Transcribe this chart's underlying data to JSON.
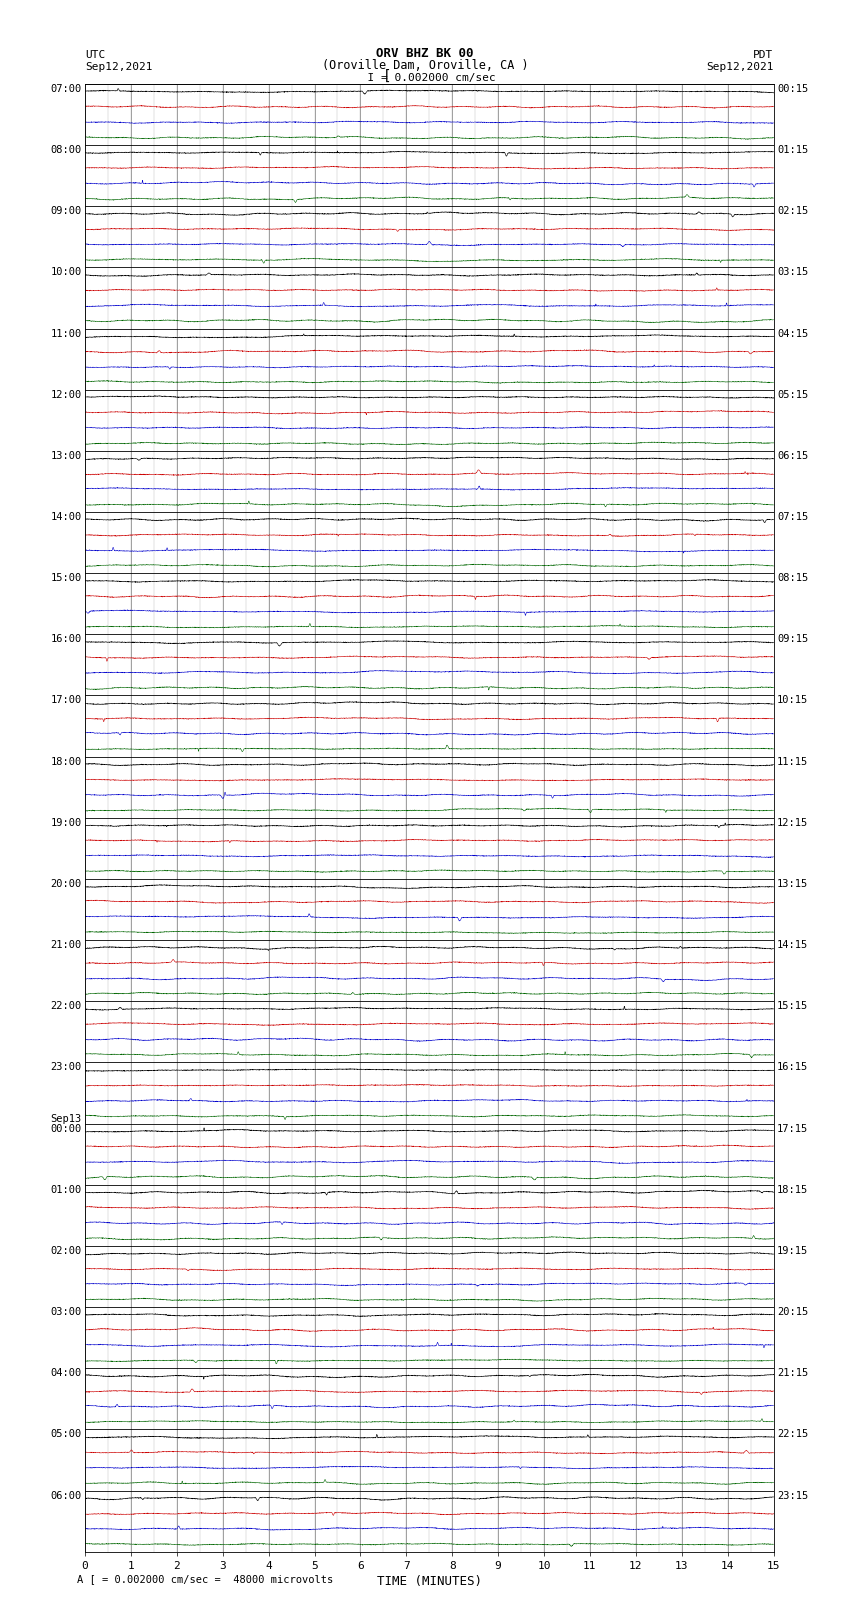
{
  "title_line1": "ORV BHZ BK 00",
  "title_line2": "(Oroville Dam, Oroville, CA )",
  "scale_label": "I = 0.002000 cm/sec",
  "left_header": "UTC",
  "left_date": "Sep12,2021",
  "right_header": "PDT",
  "right_date": "Sep12,2021",
  "xlabel": "TIME (MINUTES)",
  "footer_text": "A [ = 0.002000 cm/sec =  48000 microvolts",
  "xlim": [
    0,
    15
  ],
  "xticks": [
    0,
    1,
    2,
    3,
    4,
    5,
    6,
    7,
    8,
    9,
    10,
    11,
    12,
    13,
    14,
    15
  ],
  "trace_colors": [
    "#000000",
    "#cc0000",
    "#0000cc",
    "#006600"
  ],
  "fig_width": 8.5,
  "fig_height": 16.13,
  "dpi": 100,
  "background_color": "#ffffff",
  "n_hour_blocks": 24,
  "traces_per_block": 4,
  "samples_per_trace": 3000,
  "utc_labels": [
    [
      "07:00",
      0
    ],
    [
      "08:00",
      1
    ],
    [
      "09:00",
      2
    ],
    [
      "10:00",
      3
    ],
    [
      "11:00",
      4
    ],
    [
      "12:00",
      5
    ],
    [
      "13:00",
      6
    ],
    [
      "14:00",
      7
    ],
    [
      "15:00",
      8
    ],
    [
      "16:00",
      9
    ],
    [
      "17:00",
      10
    ],
    [
      "18:00",
      11
    ],
    [
      "19:00",
      12
    ],
    [
      "20:00",
      13
    ],
    [
      "21:00",
      14
    ],
    [
      "22:00",
      15
    ],
    [
      "23:00",
      16
    ],
    [
      "Sep13",
      17
    ],
    [
      "00:00",
      17
    ],
    [
      "01:00",
      18
    ],
    [
      "02:00",
      19
    ],
    [
      "03:00",
      20
    ],
    [
      "04:00",
      21
    ],
    [
      "05:00",
      22
    ],
    [
      "06:00",
      23
    ]
  ],
  "pdt_labels": [
    [
      "00:15",
      0
    ],
    [
      "01:15",
      1
    ],
    [
      "02:15",
      2
    ],
    [
      "03:15",
      3
    ],
    [
      "04:15",
      4
    ],
    [
      "05:15",
      5
    ],
    [
      "06:15",
      6
    ],
    [
      "07:15",
      7
    ],
    [
      "08:15",
      8
    ],
    [
      "09:15",
      9
    ],
    [
      "10:15",
      10
    ],
    [
      "11:15",
      11
    ],
    [
      "12:15",
      12
    ],
    [
      "13:15",
      13
    ],
    [
      "14:15",
      14
    ],
    [
      "15:15",
      15
    ],
    [
      "16:15",
      16
    ],
    [
      "17:15",
      17
    ],
    [
      "18:15",
      18
    ],
    [
      "19:15",
      19
    ],
    [
      "20:15",
      20
    ],
    [
      "21:15",
      21
    ],
    [
      "22:15",
      22
    ],
    [
      "23:15",
      23
    ]
  ]
}
